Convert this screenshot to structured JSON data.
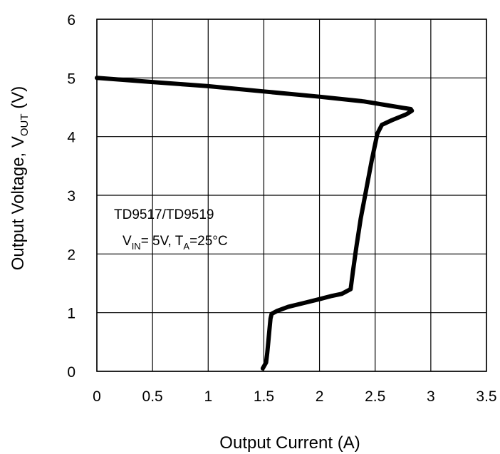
{
  "chart_data": {
    "type": "line",
    "xlabel": "Output Current (A)",
    "ylabel_main": "Output Voltage, V",
    "ylabel_sub": "OUT",
    "ylabel_unit": " (V)",
    "xlim": [
      0,
      3.5
    ],
    "ylim": [
      0,
      6
    ],
    "xticks": [
      "0",
      "0.5",
      "1",
      "1.5",
      "2",
      "2.5",
      "3",
      "3.5"
    ],
    "yticks": [
      "0",
      "1",
      "2",
      "3",
      "4",
      "5",
      "6"
    ],
    "grid": true,
    "annotation": {
      "line1": "TD9517/TD9519",
      "vin_main": "V",
      "vin_sub": "IN",
      "vin_rest": "= 5V, T",
      "ta_sub": "A",
      "ta_rest": "=25°C"
    },
    "series": [
      {
        "x": [
          0.0,
          0.5,
          1.0,
          1.5,
          2.0,
          2.4,
          2.62,
          2.75,
          2.82,
          2.83,
          2.78,
          2.65,
          2.56,
          2.52,
          2.47,
          2.42,
          2.37,
          2.33,
          2.3,
          2.28,
          2.2,
          2.1,
          2.0,
          1.85,
          1.72,
          1.62,
          1.57,
          1.56,
          1.55,
          1.54,
          1.53,
          1.52,
          1.49
        ],
        "y": [
          5.0,
          4.93,
          4.86,
          4.77,
          4.68,
          4.6,
          4.53,
          4.49,
          4.47,
          4.44,
          4.38,
          4.28,
          4.2,
          4.05,
          3.6,
          3.1,
          2.6,
          2.1,
          1.7,
          1.4,
          1.32,
          1.28,
          1.23,
          1.16,
          1.1,
          1.03,
          0.98,
          0.9,
          0.7,
          0.5,
          0.3,
          0.15,
          0.05
        ]
      }
    ]
  }
}
